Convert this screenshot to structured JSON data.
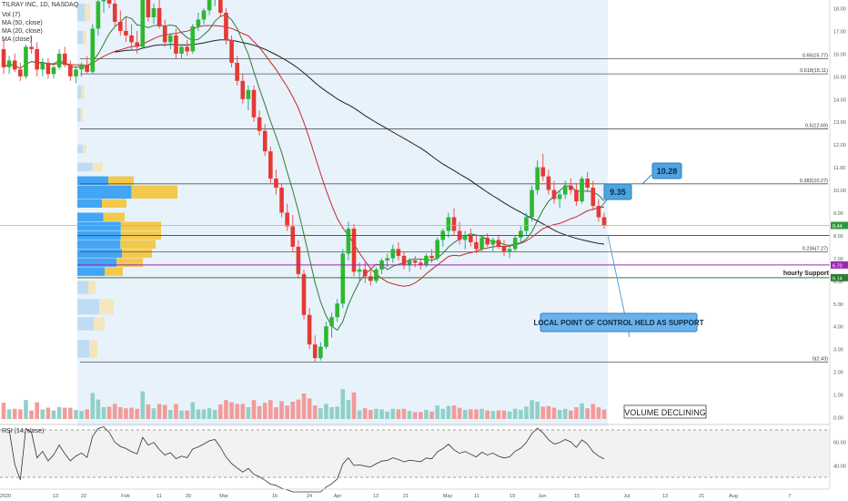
{
  "legend": {
    "symbol": "TILRAY INC, 1D, NASDAQ",
    "vol": "Vol (7)",
    "ma1": "MA (50, close)",
    "ma2": "MA (20, close)",
    "ma3": "MA (close)"
  },
  "price_axis": {
    "labels": [
      "18.00",
      "17.00",
      "16.00",
      "15.00",
      "14.00",
      "13.00",
      "12.00",
      "11.00",
      "10.00",
      "9.00",
      "8.00",
      "7.00",
      "6.00",
      "5.00",
      "4.00",
      "3.00",
      "2.00",
      "1.00",
      "0.00"
    ]
  },
  "rsi": {
    "label": "RSI (14, close)",
    "axis_labels": [
      "60.00",
      "40.00"
    ]
  },
  "time_axis": {
    "labels": [
      "2020",
      "13",
      "22",
      "Feb",
      "11",
      "20",
      "Mar",
      "16",
      "24",
      "Apr",
      "13",
      "21",
      "May",
      "11",
      "19",
      "Jun",
      "15",
      "Jul",
      "13",
      "21",
      "Aug",
      "7"
    ]
  },
  "fib_levels": [
    {
      "label": "0.65(15.77)",
      "value": 15.77
    },
    {
      "label": "0.618(15.11)",
      "value": 15.11
    },
    {
      "label": "0.5(12.69)",
      "value": 12.69
    },
    {
      "label": "0.382(10.27)",
      "value": 10.27
    },
    {
      "label": "0.236(7.27)",
      "value": 7.27
    },
    {
      "label": "0(2.43)",
      "value": 2.43
    }
  ],
  "price_tags": [
    {
      "text": "8.44",
      "color": "#2e9b3e"
    },
    {
      "text": "6.70",
      "color": "#9c27b0"
    },
    {
      "text": "6.14",
      "color": "#2e7d32"
    }
  ],
  "annotations": {
    "callout_1028": "10.28",
    "callout_935": "9.35",
    "hourly_support": "hourly Support",
    "local_poc": "LOCAL POINT OF CONTROL HELD AS SUPPORT",
    "volume_declining": "VOLUME DECLINING"
  },
  "colors": {
    "up": "#26a69a",
    "down": "#ef5350",
    "ma_red": "#c62828",
    "ma_green": "#2e7d32",
    "ma_black": "#212121",
    "shade": "#e8f2fb",
    "vp_blue": "#42a5f5",
    "vp_yellow": "#f2c94c",
    "callout": "#4fa3e0",
    "purple": "#9c27b0"
  },
  "chart_data": {
    "type": "candlestick",
    "symbol": "TILRAY INC",
    "timeframe": "1D",
    "exchange": "NASDAQ",
    "price_range": [
      0,
      18.5
    ],
    "candles_ohlc": [
      [
        16.2,
        16.6,
        15.1,
        15.4
      ],
      [
        15.4,
        15.9,
        15.1,
        15.7
      ],
      [
        15.7,
        16.0,
        15.2,
        15.3
      ],
      [
        15.3,
        15.6,
        14.8,
        15.0
      ],
      [
        15.0,
        16.4,
        14.9,
        16.3
      ],
      [
        16.3,
        16.8,
        16.0,
        16.2
      ],
      [
        16.2,
        16.5,
        15.0,
        15.3
      ],
      [
        15.3,
        15.8,
        15.0,
        15.6
      ],
      [
        15.6,
        15.8,
        14.9,
        15.1
      ],
      [
        15.1,
        15.5,
        14.9,
        15.4
      ],
      [
        15.4,
        16.2,
        15.3,
        16.0
      ],
      [
        16.0,
        16.3,
        15.4,
        15.5
      ],
      [
        15.5,
        15.7,
        14.8,
        15.0
      ],
      [
        15.0,
        15.4,
        14.7,
        15.3
      ],
      [
        15.3,
        15.6,
        15.0,
        15.5
      ],
      [
        15.5,
        15.9,
        15.1,
        15.2
      ],
      [
        15.2,
        17.3,
        15.1,
        17.1
      ],
      [
        17.1,
        18.5,
        16.8,
        18.3
      ],
      [
        18.3,
        19.0,
        17.8,
        18.6
      ],
      [
        18.6,
        19.2,
        18.0,
        18.2
      ],
      [
        18.2,
        18.5,
        17.2,
        17.4
      ],
      [
        17.4,
        17.9,
        16.8,
        17.0
      ],
      [
        17.0,
        17.6,
        16.5,
        16.8
      ],
      [
        16.8,
        17.3,
        16.2,
        16.5
      ],
      [
        16.5,
        17.0,
        16.0,
        16.3
      ],
      [
        16.3,
        18.5,
        16.2,
        18.4
      ],
      [
        18.4,
        18.6,
        17.4,
        17.6
      ],
      [
        17.6,
        18.2,
        17.3,
        18.0
      ],
      [
        18.0,
        18.4,
        17.1,
        17.2
      ],
      [
        17.2,
        17.5,
        16.3,
        16.5
      ],
      [
        16.5,
        16.9,
        16.2,
        16.8
      ],
      [
        16.8,
        17.1,
        15.8,
        16.0
      ],
      [
        16.0,
        16.4,
        15.8,
        16.3
      ],
      [
        16.3,
        16.6,
        15.9,
        16.1
      ],
      [
        16.1,
        17.3,
        16.0,
        17.2
      ],
      [
        17.2,
        17.8,
        17.0,
        17.5
      ],
      [
        17.5,
        18.0,
        17.3,
        17.9
      ],
      [
        17.9,
        18.5,
        17.7,
        18.4
      ],
      [
        18.4,
        18.9,
        18.1,
        18.6
      ],
      [
        18.6,
        18.8,
        17.6,
        17.8
      ],
      [
        17.8,
        18.0,
        16.4,
        16.6
      ],
      [
        16.6,
        16.8,
        15.4,
        15.6
      ],
      [
        15.6,
        15.9,
        14.6,
        14.8
      ],
      [
        14.8,
        15.1,
        13.8,
        14.0
      ],
      [
        14.0,
        14.6,
        13.5,
        14.4
      ],
      [
        14.4,
        14.6,
        13.0,
        13.2
      ],
      [
        13.2,
        13.5,
        12.4,
        12.6
      ],
      [
        12.6,
        12.9,
        11.5,
        11.7
      ],
      [
        11.7,
        11.9,
        10.3,
        10.5
      ],
      [
        10.5,
        10.9,
        9.8,
        10.1
      ],
      [
        10.1,
        10.3,
        8.8,
        9.0
      ],
      [
        9.0,
        9.4,
        8.2,
        8.4
      ],
      [
        8.4,
        8.9,
        7.3,
        7.5
      ],
      [
        7.5,
        7.8,
        6.1,
        6.3
      ],
      [
        6.3,
        6.5,
        4.3,
        4.5
      ],
      [
        4.5,
        4.8,
        3.0,
        3.2
      ],
      [
        3.2,
        3.6,
        2.4,
        2.6
      ],
      [
        2.6,
        3.3,
        2.5,
        3.1
      ],
      [
        3.1,
        4.2,
        3.0,
        4.0
      ],
      [
        4.0,
        4.6,
        3.5,
        4.4
      ],
      [
        4.4,
        5.2,
        4.2,
        5.0
      ],
      [
        5.0,
        7.4,
        4.8,
        7.2
      ],
      [
        7.2,
        8.6,
        6.9,
        8.3
      ],
      [
        8.3,
        8.5,
        6.2,
        6.4
      ],
      [
        6.4,
        6.8,
        6.0,
        6.5
      ],
      [
        6.5,
        6.9,
        5.9,
        6.2
      ],
      [
        6.2,
        6.6,
        5.8,
        6.0
      ],
      [
        6.0,
        6.6,
        5.9,
        6.5
      ],
      [
        6.5,
        7.0,
        6.3,
        6.9
      ],
      [
        6.9,
        7.2,
        6.6,
        7.0
      ],
      [
        7.0,
        7.6,
        6.8,
        7.4
      ],
      [
        7.4,
        7.7,
        6.9,
        7.1
      ],
      [
        7.1,
        7.3,
        6.5,
        6.7
      ],
      [
        6.7,
        7.0,
        6.4,
        6.9
      ],
      [
        6.9,
        7.1,
        6.6,
        6.8
      ],
      [
        6.8,
        7.0,
        6.5,
        6.7
      ],
      [
        6.7,
        7.2,
        6.6,
        7.1
      ],
      [
        7.1,
        7.4,
        6.8,
        7.0
      ],
      [
        7.0,
        7.9,
        6.9,
        7.8
      ],
      [
        7.8,
        8.3,
        7.5,
        8.2
      ],
      [
        8.2,
        9.0,
        7.9,
        8.8
      ],
      [
        8.8,
        9.2,
        8.0,
        8.2
      ],
      [
        8.2,
        8.6,
        7.6,
        7.8
      ],
      [
        7.8,
        8.2,
        7.4,
        8.0
      ],
      [
        8.0,
        8.3,
        7.5,
        7.7
      ],
      [
        7.7,
        8.0,
        7.2,
        7.4
      ],
      [
        7.4,
        8.0,
        7.3,
        7.9
      ],
      [
        7.9,
        8.1,
        7.5,
        7.6
      ],
      [
        7.6,
        7.9,
        7.3,
        7.8
      ],
      [
        7.8,
        8.0,
        7.4,
        7.5
      ],
      [
        7.5,
        7.8,
        7.1,
        7.3
      ],
      [
        7.3,
        7.6,
        7.0,
        7.4
      ],
      [
        7.4,
        8.0,
        7.3,
        7.9
      ],
      [
        7.9,
        8.4,
        7.7,
        8.2
      ],
      [
        8.2,
        9.0,
        8.0,
        8.8
      ],
      [
        8.8,
        10.2,
        8.6,
        10.0
      ],
      [
        10.0,
        11.3,
        9.8,
        11.0
      ],
      [
        11.0,
        11.6,
        10.4,
        10.6
      ],
      [
        10.6,
        10.9,
        9.8,
        10.0
      ],
      [
        10.0,
        10.4,
        9.4,
        9.6
      ],
      [
        9.6,
        10.0,
        9.2,
        9.8
      ],
      [
        9.8,
        10.4,
        9.6,
        10.2
      ],
      [
        10.2,
        10.5,
        9.8,
        10.0
      ],
      [
        10.0,
        10.3,
        9.3,
        9.5
      ],
      [
        9.5,
        10.6,
        9.4,
        10.5
      ],
      [
        10.5,
        10.8,
        9.9,
        10.1
      ],
      [
        10.1,
        10.4,
        9.1,
        9.3
      ],
      [
        9.3,
        9.6,
        8.6,
        8.8
      ],
      [
        8.8,
        9.0,
        8.3,
        8.44
      ]
    ],
    "moving_averages": [
      {
        "name": "MA (50, close)",
        "color": "#c62828"
      },
      {
        "name": "MA (20, close)",
        "color": "#2e7d32"
      }
    ],
    "fibonacci": [
      {
        "ratio": 0.65,
        "price": 15.77
      },
      {
        "ratio": 0.618,
        "price": 15.11
      },
      {
        "ratio": 0.5,
        "price": 12.69
      },
      {
        "ratio": 0.382,
        "price": 10.27
      },
      {
        "ratio": 0.236,
        "price": 7.27
      },
      {
        "ratio": 0,
        "price": 2.43
      }
    ],
    "horizontal_levels": [
      {
        "name": "point of control",
        "price": 8.0,
        "color": "#c62828"
      },
      {
        "name": "purple level",
        "price": 6.7,
        "color": "#9c27b0"
      },
      {
        "name": "hourly Support",
        "price": 6.14,
        "color": "#2e7d32"
      }
    ],
    "last_price": 8.44
  }
}
